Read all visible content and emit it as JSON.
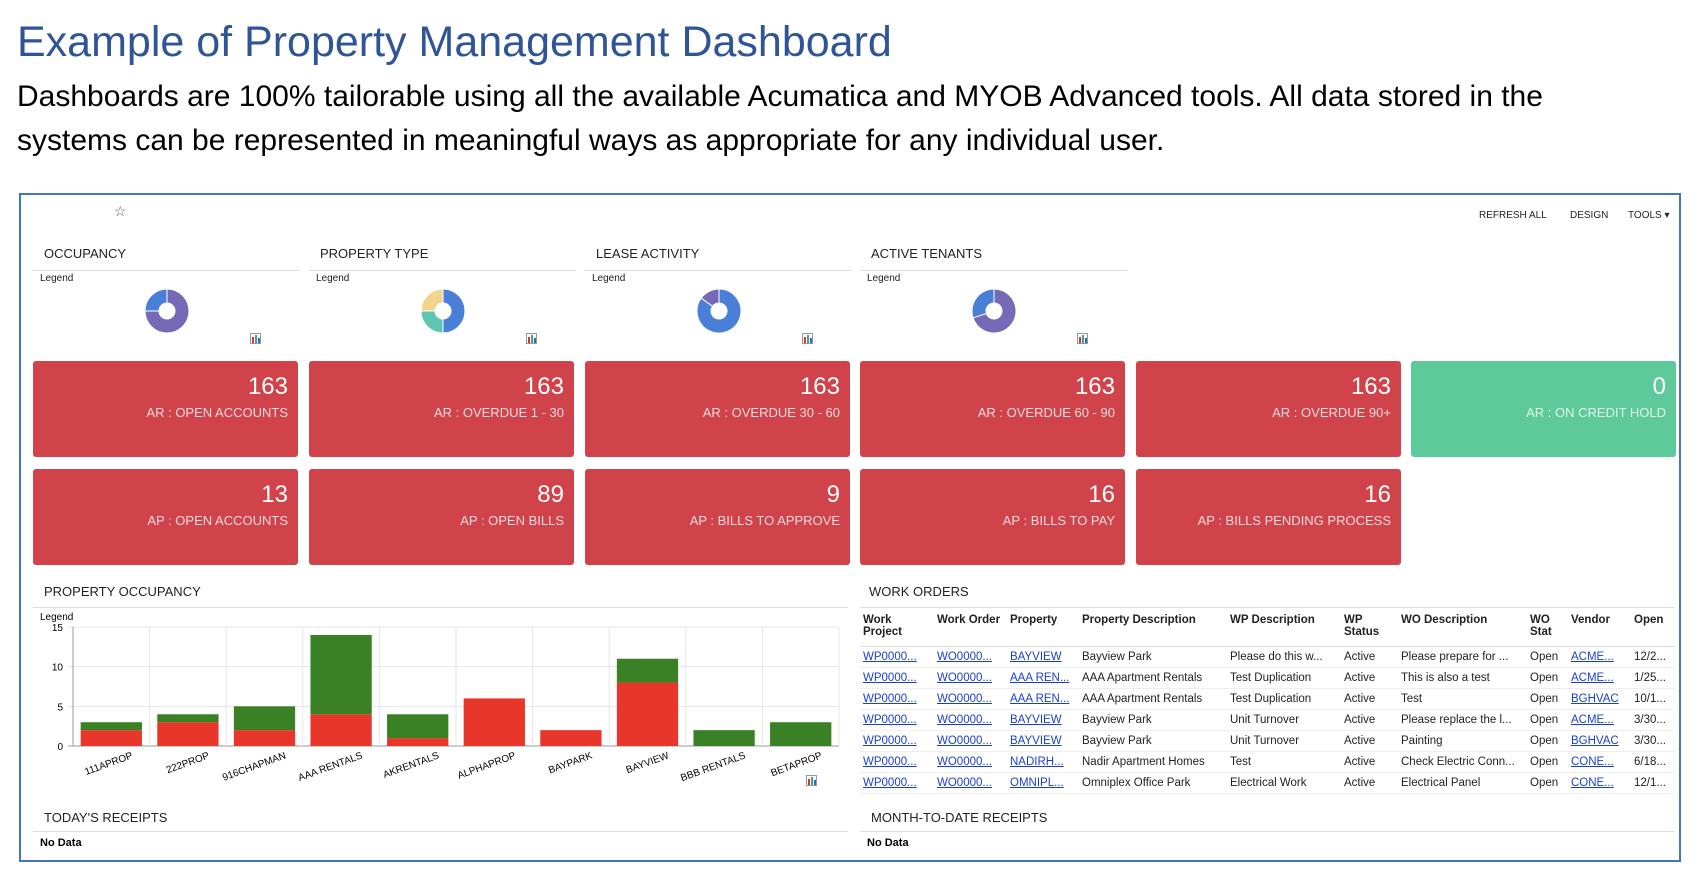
{
  "header": {
    "title": "Example of Property Management Dashboard",
    "subtitle_lines": [
      "Dashboards are 100% tailorable using all the available Acumatica and MYOB Advanced tools.  All data stored in the",
      "systems can be represented in meaningful ways as appropriate for any individual user."
    ]
  },
  "toolbar": {
    "actions": [
      "REFRESH ALL",
      "DESIGN",
      "TOOLS"
    ]
  },
  "pie_widgets": [
    {
      "title": "OCCUPANCY",
      "legend": "Legend",
      "slices": [
        {
          "value": 75,
          "color": "#7569b8"
        },
        {
          "value": 25,
          "color": "#4a7fd8"
        }
      ]
    },
    {
      "title": "PROPERTY TYPE",
      "legend": "Legend",
      "slices": [
        {
          "value": 50,
          "color": "#4a7fd8"
        },
        {
          "value": 25,
          "color": "#5cc6b2"
        },
        {
          "value": 25,
          "color": "#f1d58c"
        }
      ]
    },
    {
      "title": "LEASE ACTIVITY",
      "legend": "Legend",
      "slices": [
        {
          "value": 85,
          "color": "#4a7fd8"
        },
        {
          "value": 15,
          "color": "#7569b8"
        }
      ]
    },
    {
      "title": "ACTIVE TENANTS",
      "legend": "Legend",
      "slices": [
        {
          "value": 70,
          "color": "#7569b8"
        },
        {
          "value": 30,
          "color": "#4a7fd8"
        }
      ]
    }
  ],
  "tiles": [
    [
      {
        "value": 163,
        "label": "AR : OPEN ACCOUNTS",
        "color": "#d0434b"
      },
      {
        "value": 163,
        "label": "AR : OVERDUE 1 - 30",
        "color": "#d0434b"
      },
      {
        "value": 163,
        "label": "AR : OVERDUE 30 - 60",
        "color": "#d0434b"
      },
      {
        "value": 163,
        "label": "AR : OVERDUE 60 - 90",
        "color": "#d0434b"
      },
      {
        "value": 163,
        "label": "AR : OVERDUE 90+",
        "color": "#d0434b"
      },
      {
        "value": 0,
        "label": "AR : ON CREDIT HOLD",
        "color": "#5ec99b"
      }
    ],
    [
      {
        "value": 13,
        "label": "AP : OPEN ACCOUNTS",
        "color": "#d0434b"
      },
      {
        "value": 89,
        "label": "AP : OPEN BILLS",
        "color": "#d0434b"
      },
      {
        "value": 9,
        "label": "AP : BILLS TO APPROVE",
        "color": "#d0434b"
      },
      {
        "value": 16,
        "label": "AP : BILLS TO PAY",
        "color": "#d0434b"
      },
      {
        "value": 16,
        "label": "AP : BILLS PENDING PROCESS",
        "color": "#d0434b"
      }
    ]
  ],
  "chart_data": {
    "type": "bar",
    "stacked": true,
    "title": "PROPERTY OCCUPANCY",
    "legend": "Legend",
    "categories": [
      "111APROP",
      "222PROP",
      "916CHAPMAN",
      "AAA RENTALS",
      "AKRENTALS",
      "ALPHAPROP",
      "BAYPARK",
      "BAYVIEW",
      "BBB RENTALS",
      "BETAPROP"
    ],
    "series": [
      {
        "color": "#e8372a",
        "values": [
          2,
          3,
          2,
          4,
          1,
          6,
          2,
          8,
          0,
          0
        ]
      },
      {
        "color": "#3a8125",
        "values": [
          1,
          1,
          3,
          10,
          3,
          0,
          0,
          3,
          2,
          3
        ]
      }
    ],
    "ylim": [
      0,
      15
    ],
    "yticks": [
      0,
      5,
      10,
      15
    ],
    "grid": true
  },
  "work_orders": {
    "title": "WORK ORDERS",
    "columns": [
      "Work Project",
      "Work Order",
      "Property",
      "Property Description",
      "WP Description",
      "WP Status",
      "WO Description",
      "WO Stat",
      "Vendor",
      "Open"
    ],
    "link_columns": [
      0,
      1,
      2,
      8
    ],
    "rows": [
      [
        "WP0000...",
        "WO0000...",
        "BAYVIEW",
        "Bayview Park",
        "Please do this w...",
        "Active",
        "Please prepare for ...",
        "Open",
        "ACME...",
        "12/2..."
      ],
      [
        "WP0000...",
        "WO0000...",
        "AAA REN...",
        "AAA Apartment Rentals",
        "Test Duplication",
        "Active",
        "This is also a test",
        "Open",
        "ACME...",
        "1/25..."
      ],
      [
        "WP0000...",
        "WO0000...",
        "AAA REN...",
        "AAA Apartment Rentals",
        "Test Duplication",
        "Active",
        "Test",
        "Open",
        "BGHVAC",
        "10/1..."
      ],
      [
        "WP0000...",
        "WO0000...",
        "BAYVIEW",
        "Bayview Park",
        "Unit Turnover",
        "Active",
        "Please replace the l...",
        "Open",
        "ACME...",
        "3/30..."
      ],
      [
        "WP0000...",
        "WO0000...",
        "BAYVIEW",
        "Bayview Park",
        "Unit Turnover",
        "Active",
        "Painting",
        "Open",
        "BGHVAC",
        "3/30..."
      ],
      [
        "WP0000...",
        "WO0000...",
        "NADIRH...",
        "Nadir Apartment Homes",
        "Test",
        "Active",
        "Check Electric Conn...",
        "Open",
        "CONE...",
        "6/18..."
      ],
      [
        "WP0000...",
        "WO0000...",
        "OMNIPL...",
        "Omniplex Office Park",
        "Electrical Work",
        "Active",
        "Electrical Panel",
        "Open",
        "CONE...",
        "12/1..."
      ]
    ]
  },
  "receipts": [
    {
      "title": "TODAY'S RECEIPTS",
      "message": "No Data"
    },
    {
      "title": "MONTH-TO-DATE RECEIPTS",
      "message": "No Data"
    }
  ]
}
